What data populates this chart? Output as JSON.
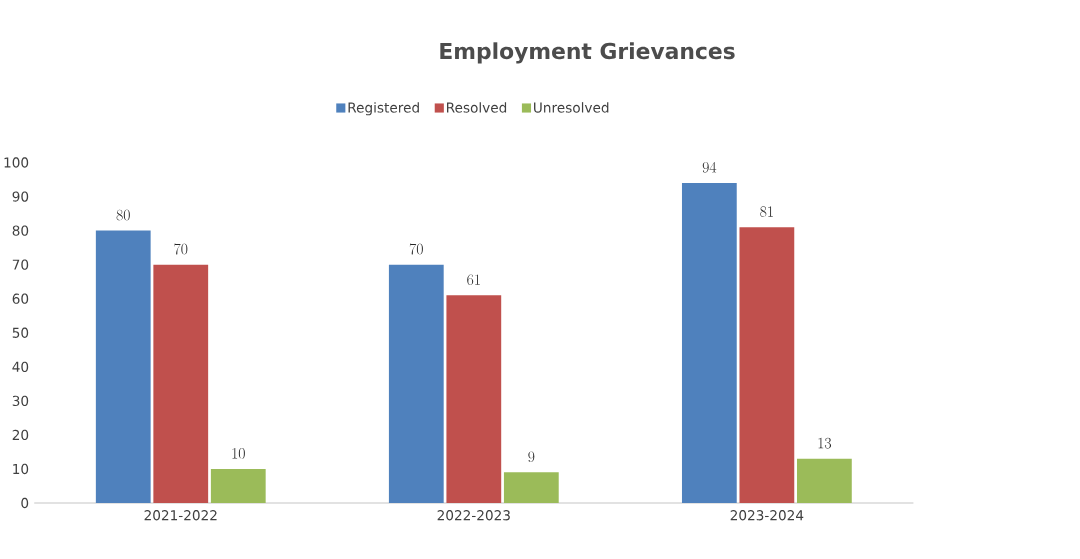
{
  "chart_data": {
    "type": "bar",
    "title": "Employment Grievances",
    "categories": [
      "2021-2022",
      "2022-2023",
      "2023-2024"
    ],
    "series": [
      {
        "name": "Registered",
        "color": "#4f81bd",
        "values": [
          80,
          70,
          94
        ]
      },
      {
        "name": "Resolved",
        "color": "#c0504d",
        "values": [
          70,
          61,
          81
        ]
      },
      {
        "name": "Unresolved",
        "color": "#9bbb59",
        "values": [
          10,
          9,
          13
        ]
      }
    ],
    "ylim": [
      0,
      100
    ],
    "yticks": [
      0,
      10,
      20,
      30,
      40,
      50,
      60,
      70,
      80,
      90,
      100
    ],
    "data_labels": true,
    "legend": "top",
    "grid": false
  }
}
